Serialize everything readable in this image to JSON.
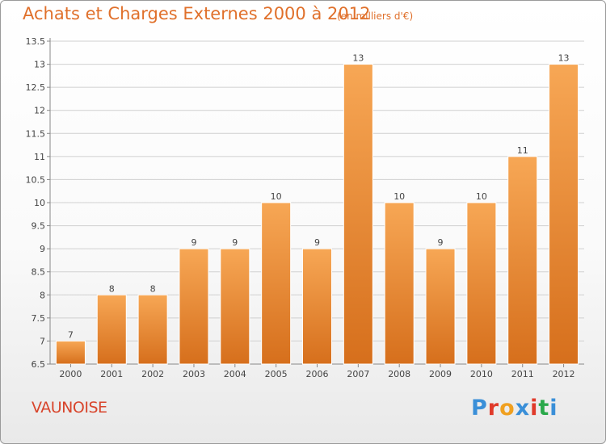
{
  "header": {
    "title": "Achats et Charges Externes 2000 à 2012",
    "subtitle": "(en milliers d'€)"
  },
  "footer": {
    "commune": "VAUNOISE",
    "logo": "Proxiti"
  },
  "colors": {
    "title": "#e0702b",
    "bar_light": "#f7a755",
    "bar_dark": "#d66f1c",
    "grid": "#d0d0d0",
    "commune": "#d8452c"
  },
  "chart_data": {
    "type": "bar",
    "categories": [
      "2000",
      "2001",
      "2002",
      "2003",
      "2004",
      "2005",
      "2006",
      "2007",
      "2008",
      "2009",
      "2010",
      "2011",
      "2012"
    ],
    "values": [
      7,
      8,
      8,
      9,
      9,
      10,
      9,
      13,
      10,
      9,
      10,
      11,
      13
    ],
    "value_labels": [
      "7",
      "8",
      "8",
      "9",
      "9",
      "10",
      "9",
      "13",
      "10",
      "9",
      "10",
      "11",
      "13"
    ],
    "y_ticks": [
      "6.5",
      "7",
      "7.5",
      "8",
      "8.5",
      "9",
      "9.5",
      "10",
      "10.5",
      "11",
      "11.5",
      "12",
      "12.5",
      "13",
      "13.5"
    ],
    "ylim": [
      6.5,
      13.5
    ],
    "grid": true,
    "title": "Achats et Charges Externes 2000 à 2012",
    "xlabel": "",
    "ylabel": ""
  }
}
